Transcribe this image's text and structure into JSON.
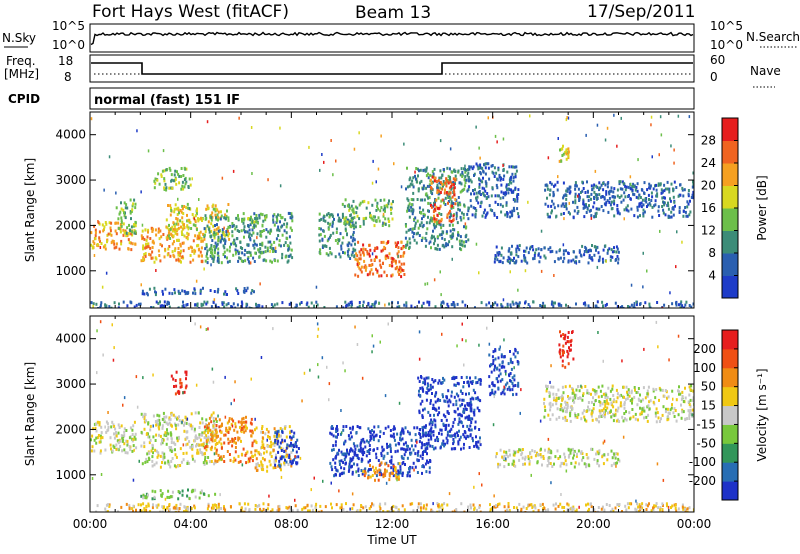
{
  "header": {
    "station": "Fort Hays West (fitACF)",
    "beam": "Beam 13",
    "date": "17/Sep/2011"
  },
  "panel_labels": {
    "nsky": "N.Sky",
    "nsky_top": "10^5",
    "nsky_bottom": "10^0",
    "nsearch": "N.Search",
    "nsearch_top": "10^5",
    "nsearch_bottom": "10^0",
    "freq_line1": "Freq.",
    "freq_line2": "[MHz]",
    "freq_top": "18",
    "freq_bottom": "8",
    "nave": "Nave",
    "nave_top": "60",
    "nave_bottom": "0",
    "cpid": "CPID",
    "cpid_value": "normal (fast) 151 IF"
  },
  "chart_data": [
    {
      "type": "heatmap",
      "name": "power",
      "ylabel": "Slant Range [km]",
      "xlabel": "",
      "xlim": [
        "00:00",
        "24:00"
      ],
      "ylim": [
        180,
        4500
      ],
      "yticks": [
        "1000",
        "2000",
        "3000",
        "4000"
      ],
      "xticks": [
        "00:00",
        "04:00",
        "08:00",
        "12:00",
        "16:00",
        "20:00",
        "00:00"
      ],
      "colorbar": {
        "label": "Power [dB]",
        "ticks": [
          "4",
          "8",
          "12",
          "16",
          "20",
          "24",
          "28"
        ],
        "colors": [
          "#1e3cc8",
          "#2a5fb0",
          "#3c8c78",
          "#6cbf4a",
          "#d8d820",
          "#f5a020",
          "#f06420",
          "#e61e1e"
        ]
      },
      "regions": [
        {
          "t0": 0.0,
          "t1": 1.8,
          "r0": 1500,
          "r1": 2100,
          "level": 5
        },
        {
          "t0": 1.0,
          "t1": 1.8,
          "r0": 1800,
          "r1": 2600,
          "level": 3
        },
        {
          "t0": 2.0,
          "t1": 4.5,
          "r0": 1200,
          "r1": 2000,
          "level": 5
        },
        {
          "t0": 3.0,
          "t1": 5.5,
          "r0": 1700,
          "r1": 2500,
          "level": 4
        },
        {
          "t0": 2.5,
          "t1": 4.0,
          "r0": 2800,
          "r1": 3300,
          "level": 3
        },
        {
          "t0": 4.5,
          "t1": 8.0,
          "r0": 1200,
          "r1": 2300,
          "level": 2
        },
        {
          "t0": 6.0,
          "t1": 7.0,
          "r0": 2000,
          "r1": 2300,
          "level": 3
        },
        {
          "t0": 2.0,
          "t1": 6.5,
          "r0": 500,
          "r1": 650,
          "level": 1
        },
        {
          "t0": 9.0,
          "t1": 10.5,
          "r0": 1300,
          "r1": 2300,
          "level": 2
        },
        {
          "t0": 10.5,
          "t1": 12.5,
          "r0": 900,
          "r1": 1700,
          "level": 6
        },
        {
          "t0": 10.0,
          "t1": 12.0,
          "r0": 2000,
          "r1": 2600,
          "level": 3
        },
        {
          "t0": 12.5,
          "t1": 15.0,
          "r0": 1500,
          "r1": 3300,
          "level": 2
        },
        {
          "t0": 13.5,
          "t1": 14.5,
          "r0": 2100,
          "r1": 3100,
          "level": 6
        },
        {
          "t0": 15.0,
          "t1": 17.0,
          "r0": 2200,
          "r1": 3400,
          "level": 1
        },
        {
          "t0": 16.0,
          "t1": 21.0,
          "r0": 1200,
          "r1": 1600,
          "level": 1
        },
        {
          "t0": 18.0,
          "t1": 24.0,
          "r0": 2200,
          "r1": 3000,
          "level": 1
        },
        {
          "t0": 18.6,
          "t1": 19.0,
          "r0": 3400,
          "r1": 3800,
          "level": 4
        },
        {
          "t0": 0.0,
          "t1": 24.0,
          "r0": 200,
          "r1": 350,
          "level": 1
        }
      ]
    },
    {
      "type": "heatmap",
      "name": "velocity",
      "ylabel": "Slant Range [km]",
      "xlabel": "Time UT",
      "xlim": [
        "00:00",
        "24:00"
      ],
      "ylim": [
        180,
        4500
      ],
      "yticks": [
        "1000",
        "2000",
        "3000",
        "4000"
      ],
      "xticks": [
        "00:00",
        "04:00",
        "08:00",
        "12:00",
        "16:00",
        "20:00",
        "00:00"
      ],
      "colorbar": {
        "label": "Velocity [m s⁻¹]",
        "ticks": [
          "200",
          "100",
          "50",
          "15",
          "-15",
          "-50",
          "-100",
          "-200"
        ],
        "colors": [
          "#1e32c8",
          "#286eb4",
          "#32965a",
          "#78c83c",
          "#c8c8c8",
          "#f0c814",
          "#f08c14",
          "#f05014",
          "#e61e1e"
        ]
      },
      "regions": [
        {
          "t0": 0.0,
          "t1": 1.8,
          "r0": 1500,
          "r1": 2200,
          "level": 4
        },
        {
          "t0": 2.0,
          "t1": 5.0,
          "r0": 1200,
          "r1": 2400,
          "level": 4
        },
        {
          "t0": 3.2,
          "t1": 3.8,
          "r0": 2800,
          "r1": 3300,
          "level": 8
        },
        {
          "t0": 4.5,
          "t1": 6.5,
          "r0": 1300,
          "r1": 2300,
          "level": 6
        },
        {
          "t0": 6.5,
          "t1": 8.0,
          "r0": 1100,
          "r1": 2100,
          "level": 5
        },
        {
          "t0": 7.3,
          "t1": 8.3,
          "r0": 1200,
          "r1": 2000,
          "level": 0
        },
        {
          "t0": 2.0,
          "t1": 5.0,
          "r0": 500,
          "r1": 700,
          "level": 3
        },
        {
          "t0": 9.5,
          "t1": 13.5,
          "r0": 1000,
          "r1": 2100,
          "level": 0
        },
        {
          "t0": 10.8,
          "t1": 12.3,
          "r0": 900,
          "r1": 1300,
          "level": 6
        },
        {
          "t0": 13.0,
          "t1": 15.5,
          "r0": 1600,
          "r1": 3200,
          "level": 0
        },
        {
          "t0": 15.8,
          "t1": 17.0,
          "r0": 2800,
          "r1": 3800,
          "level": 0
        },
        {
          "t0": 16.0,
          "t1": 21.0,
          "r0": 1200,
          "r1": 1600,
          "level": 4
        },
        {
          "t0": 18.0,
          "t1": 24.0,
          "r0": 2200,
          "r1": 3000,
          "level": 4
        },
        {
          "t0": 18.6,
          "t1": 19.2,
          "r0": 3400,
          "r1": 4200,
          "level": 8
        },
        {
          "t0": 0.0,
          "t1": 24.0,
          "r0": 200,
          "r1": 400,
          "level": 5
        }
      ]
    }
  ]
}
